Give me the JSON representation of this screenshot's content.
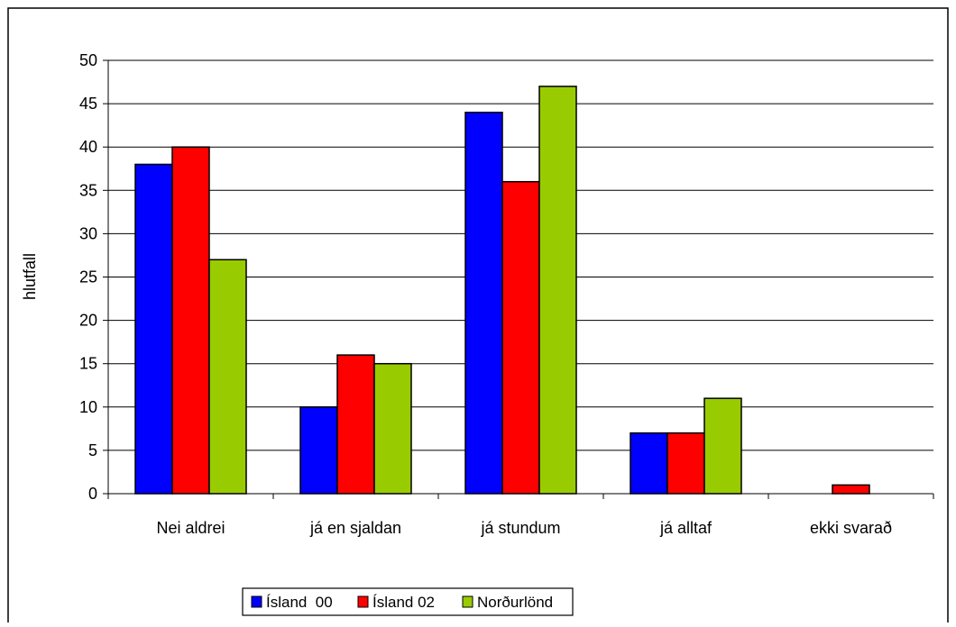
{
  "chart_data": {
    "type": "bar",
    "title": "",
    "xlabel": "",
    "ylabel": "hlutfall",
    "ylim": [
      0,
      50
    ],
    "yticks": [
      0,
      5,
      10,
      15,
      20,
      25,
      30,
      35,
      40,
      45,
      50
    ],
    "categories": [
      "Nei aldrei",
      "já en sjaldan",
      "já stundum",
      "já alltaf",
      "ekki svarað"
    ],
    "series": [
      {
        "name": "Ísland  00",
        "color": "#0000ff",
        "values": [
          38,
          10,
          44,
          7,
          0
        ]
      },
      {
        "name": "Ísland 02",
        "color": "#ff0000",
        "values": [
          40,
          16,
          36,
          7,
          1
        ]
      },
      {
        "name": "Norðurlönd",
        "color": "#99cc00",
        "values": [
          27,
          15,
          47,
          11,
          0
        ]
      }
    ],
    "grid": true,
    "legend_position": "bottom"
  }
}
